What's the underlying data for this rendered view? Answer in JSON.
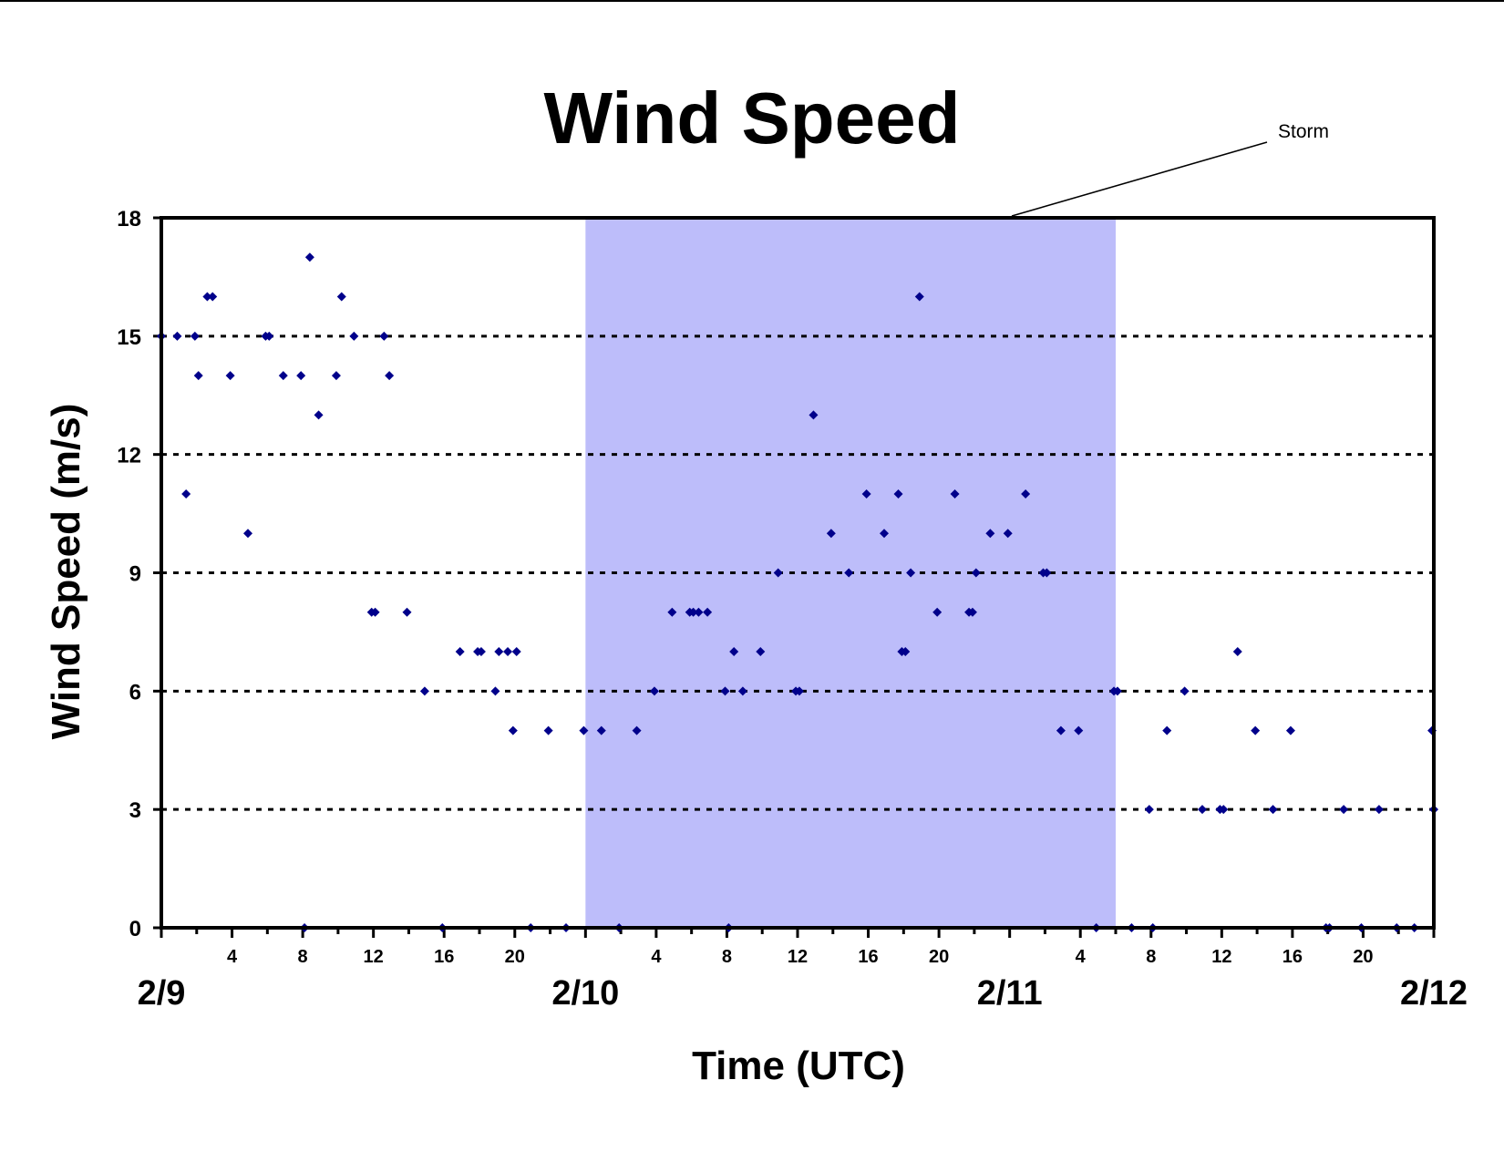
{
  "chart_data": {
    "type": "scatter",
    "title": "Wind Speed",
    "xlabel": "Time (UTC)",
    "ylabel": "Wind Speed (m/s)",
    "ylim": [
      0,
      18
    ],
    "yticks": [
      0,
      3,
      6,
      9,
      12,
      15,
      18
    ],
    "xlim_hours": [
      0,
      72
    ],
    "x_units": "hours after 2/9 00 UTC",
    "xtick_labels": [
      {
        "x": 4,
        "label": "4"
      },
      {
        "x": 8,
        "label": "8"
      },
      {
        "x": 12,
        "label": "12"
      },
      {
        "x": 16,
        "label": "16"
      },
      {
        "x": 20,
        "label": "20"
      },
      {
        "x": 28,
        "label": "4"
      },
      {
        "x": 32,
        "label": "8"
      },
      {
        "x": 36,
        "label": "12"
      },
      {
        "x": 40,
        "label": "16"
      },
      {
        "x": 44,
        "label": "20"
      },
      {
        "x": 52,
        "label": "4"
      },
      {
        "x": 56,
        "label": "8"
      },
      {
        "x": 60,
        "label": "12"
      },
      {
        "x": 64,
        "label": "16"
      },
      {
        "x": 68,
        "label": "20"
      }
    ],
    "day_labels": [
      {
        "x": 0,
        "label": "2/9"
      },
      {
        "x": 24,
        "label": "2/10"
      },
      {
        "x": 48,
        "label": "2/11"
      },
      {
        "x": 72,
        "label": "2/12"
      }
    ],
    "grid": "horizontal dotted",
    "storm_period": {
      "label": "Storm",
      "x_start": 24,
      "x_end": 54
    },
    "colors": {
      "marker": "#00008B",
      "storm": "#BDBDFA"
    },
    "points": [
      [
        0,
        15
      ],
      [
        0.9,
        15
      ],
      [
        1.4,
        11
      ],
      [
        1.9,
        15
      ],
      [
        2.1,
        14
      ],
      [
        2.6,
        16
      ],
      [
        2.9,
        16
      ],
      [
        3.9,
        14
      ],
      [
        4.9,
        10
      ],
      [
        5.9,
        15
      ],
      [
        6.1,
        15
      ],
      [
        6.9,
        14
      ],
      [
        7.9,
        14
      ],
      [
        8.1,
        0
      ],
      [
        8.4,
        17
      ],
      [
        8.9,
        13
      ],
      [
        9.9,
        14
      ],
      [
        10.2,
        16
      ],
      [
        10.9,
        15
      ],
      [
        11.9,
        8
      ],
      [
        12.1,
        8
      ],
      [
        12.6,
        15
      ],
      [
        12.9,
        14
      ],
      [
        13.9,
        8
      ],
      [
        14.9,
        6
      ],
      [
        15.9,
        0
      ],
      [
        16.9,
        7
      ],
      [
        17.9,
        7
      ],
      [
        18.1,
        7
      ],
      [
        18.9,
        6
      ],
      [
        19.1,
        7
      ],
      [
        19.6,
        7
      ],
      [
        19.9,
        5
      ],
      [
        20.1,
        7
      ],
      [
        20.9,
        0
      ],
      [
        21.9,
        5
      ],
      [
        22.9,
        0
      ],
      [
        23.9,
        5
      ],
      [
        24.9,
        5
      ],
      [
        25.9,
        0
      ],
      [
        26.9,
        5
      ],
      [
        27.9,
        6
      ],
      [
        28.9,
        8
      ],
      [
        29.9,
        8
      ],
      [
        30.1,
        8
      ],
      [
        30.4,
        8
      ],
      [
        30.9,
        8
      ],
      [
        31.9,
        6
      ],
      [
        32.1,
        0
      ],
      [
        32.4,
        7
      ],
      [
        32.9,
        6
      ],
      [
        33.9,
        7
      ],
      [
        34.9,
        9
      ],
      [
        35.9,
        6
      ],
      [
        36.1,
        6
      ],
      [
        36.9,
        13
      ],
      [
        37.9,
        10
      ],
      [
        38.9,
        9
      ],
      [
        39.9,
        11
      ],
      [
        40.9,
        10
      ],
      [
        41.7,
        11
      ],
      [
        41.9,
        7
      ],
      [
        42.1,
        7
      ],
      [
        42.4,
        9
      ],
      [
        42.9,
        16
      ],
      [
        43.9,
        8
      ],
      [
        44.9,
        11
      ],
      [
        45.7,
        8
      ],
      [
        45.9,
        8
      ],
      [
        46.1,
        9
      ],
      [
        46.9,
        10
      ],
      [
        47.9,
        10
      ],
      [
        48.9,
        11
      ],
      [
        49.9,
        9
      ],
      [
        50.1,
        9
      ],
      [
        50.9,
        5
      ],
      [
        51.9,
        5
      ],
      [
        52.9,
        0
      ],
      [
        53.9,
        6
      ],
      [
        54.1,
        6
      ],
      [
        54.9,
        0
      ],
      [
        55.9,
        3
      ],
      [
        56.1,
        0
      ],
      [
        56.9,
        5
      ],
      [
        57.9,
        6
      ],
      [
        58.9,
        3
      ],
      [
        59.9,
        3
      ],
      [
        60.1,
        3
      ],
      [
        60.9,
        7
      ],
      [
        61.9,
        5
      ],
      [
        62.9,
        3
      ],
      [
        63.9,
        5
      ],
      [
        65.9,
        0
      ],
      [
        66.1,
        0
      ],
      [
        66.9,
        3
      ],
      [
        67.9,
        0
      ],
      [
        68.9,
        3
      ],
      [
        69.9,
        0
      ],
      [
        70.9,
        0
      ],
      [
        71.9,
        5
      ],
      [
        72,
        3
      ]
    ]
  }
}
